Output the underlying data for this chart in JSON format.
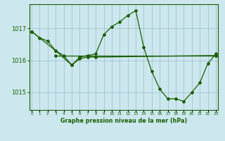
{
  "bg_color": "#cce8ee",
  "grid_color": "#99bbcc",
  "line_color": "#1a5c00",
  "title": "Graphe pression niveau de la mer (hPa)",
  "ylabel_ticks": [
    1015,
    1016,
    1017
  ],
  "xlim": [
    -0.3,
    23.3
  ],
  "ylim": [
    1014.45,
    1017.75
  ],
  "series": [
    {
      "x": [
        0,
        1,
        2,
        3,
        4,
        5,
        6,
        7,
        8,
        9,
        10,
        11,
        12,
        13,
        14,
        15,
        16,
        17,
        18,
        19,
        20,
        21,
        22,
        23
      ],
      "y": [
        1016.9,
        1016.7,
        1016.6,
        1016.3,
        1016.15,
        1015.85,
        1016.1,
        1016.15,
        1016.2,
        1016.8,
        1017.05,
        1017.2,
        1017.4,
        1017.55,
        1016.4,
        1015.65,
        1015.1,
        1014.8,
        1014.8,
        1014.72,
        1015.0,
        1015.3,
        1015.9,
        1016.2
      ]
    },
    {
      "x": [
        3,
        23
      ],
      "y": [
        1016.15,
        1016.15
      ]
    },
    {
      "x": [
        0,
        3,
        5,
        6,
        7,
        8,
        23
      ],
      "y": [
        1016.9,
        1016.3,
        1015.85,
        1016.05,
        1016.1,
        1016.1,
        1016.15
      ]
    }
  ]
}
